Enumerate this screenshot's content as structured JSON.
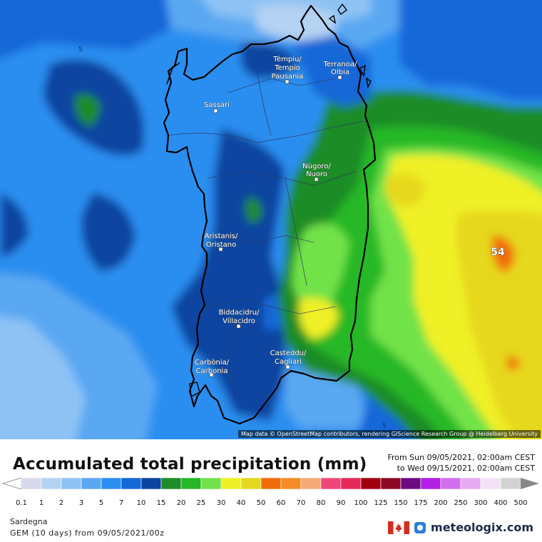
{
  "title": "Accumulated total precipitation (mm)",
  "period": {
    "from": "From Sun 09/05/2021, 02:00am CEST",
    "to": "to Wed 09/15/2021, 02:00am CEST"
  },
  "attribution": "Map data © OpenStreetMap contributors, rendering GIScience Research Group @ Heidelberg University",
  "region": "Sardegna",
  "model": "GEM (10 days) from 09/05/2021/00z",
  "brand": "meteologix.com",
  "max_label": "54",
  "contour_labels": [
    "5",
    "5"
  ],
  "legend": {
    "ticks": [
      "0.1",
      "1",
      "2",
      "3",
      "5",
      "7",
      "10",
      "15",
      "20",
      "25",
      "30",
      "40",
      "50",
      "60",
      "70",
      "80",
      "90",
      "100",
      "125",
      "150",
      "175",
      "200",
      "250",
      "300",
      "400",
      "500"
    ],
    "colors": [
      "#d8d8ec",
      "#b4d2f2",
      "#8ec2f4",
      "#5aa8f2",
      "#2c8ef0",
      "#1468d8",
      "#0a44a0",
      "#1e8c28",
      "#26b826",
      "#72e24a",
      "#f0f028",
      "#e6d81e",
      "#f06c0a",
      "#f58c28",
      "#f5aa78",
      "#f0467a",
      "#e6285a",
      "#a0000e",
      "#8c0a28",
      "#6e0a82",
      "#b41ee6",
      "#d26ef0",
      "#e6aaf0",
      "#f5e1f5",
      "#d2d2d2"
    ]
  },
  "cities": [
    {
      "name": "Tèmpiu/",
      "name2": "Tempio",
      "name3": "Pausania"
    },
    {
      "name": "Terranoa/",
      "name2": "Olbia"
    },
    {
      "name": "Sassari"
    },
    {
      "name": "Nùgoro/",
      "name2": "Nuoro"
    },
    {
      "name": "Aristanis/",
      "name2": "Oristano"
    },
    {
      "name": "Biddacidru/",
      "name2": "Villacidro"
    },
    {
      "name": "Casteddu/",
      "name2": "Cagliari"
    },
    {
      "name": "Carbònia/",
      "name2": "Carbonia"
    }
  ],
  "colors": {
    "coast": "#000000",
    "boundaries": "#2a3a66"
  }
}
